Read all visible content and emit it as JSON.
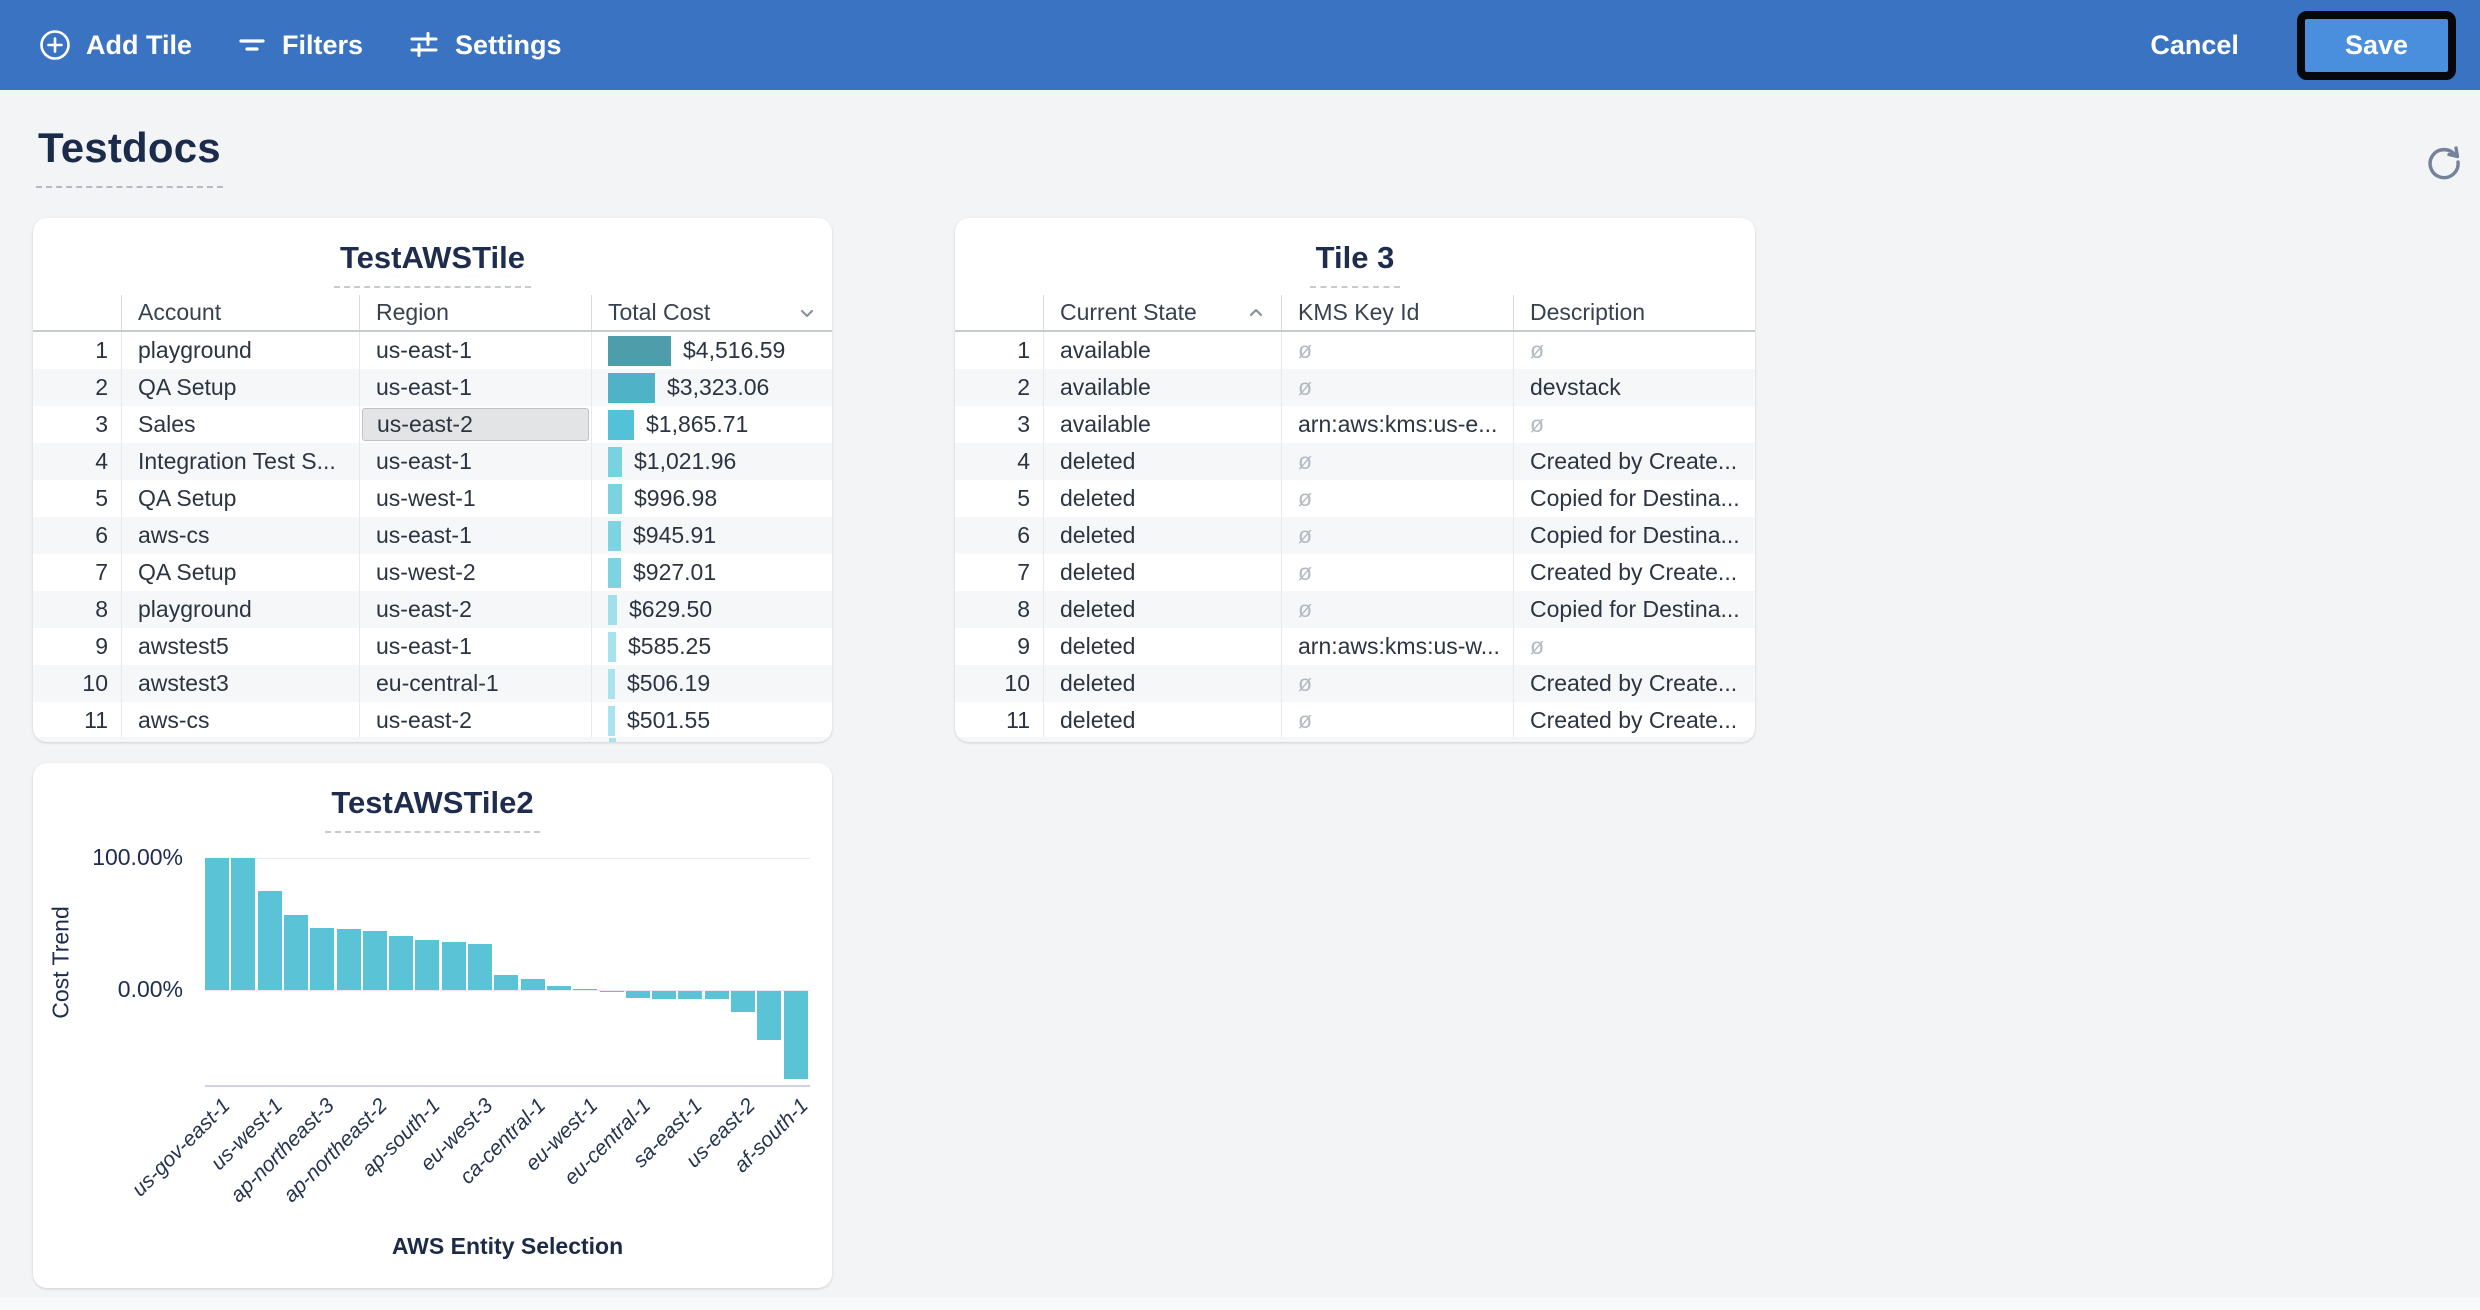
{
  "toolbar": {
    "add_tile_label": "Add Tile",
    "filters_label": "Filters",
    "settings_label": "Settings",
    "cancel_label": "Cancel",
    "save_label": "Save",
    "bar_color": "#3a73c2",
    "save_bg": "#4a8ede"
  },
  "page": {
    "title": "Testdocs"
  },
  "aws_tile": {
    "title": "TestAWSTile",
    "columns": [
      "Account",
      "Region",
      "Total Cost"
    ],
    "sort": {
      "column": "Total Cost",
      "direction": "desc"
    },
    "rows": [
      {
        "n": "1",
        "account": "playground",
        "region": "us-east-1",
        "total_cost": "$4,516.59",
        "value": 4516.59,
        "bar_color": "#4d9dab",
        "region_selected": false
      },
      {
        "n": "2",
        "account": "QA Setup",
        "region": "us-east-1",
        "total_cost": "$3,323.06",
        "value": 3323.06,
        "bar_color": "#4fb2c6",
        "region_selected": false
      },
      {
        "n": "3",
        "account": "Sales",
        "region": "us-east-2",
        "total_cost": "$1,865.71",
        "value": 1865.71,
        "bar_color": "#53c2d8",
        "region_selected": true
      },
      {
        "n": "4",
        "account": "Integration Test S...",
        "region": "us-east-1",
        "total_cost": "$1,021.96",
        "value": 1021.96,
        "bar_color": "#79d2e2",
        "region_selected": false
      },
      {
        "n": "5",
        "account": "QA Setup",
        "region": "us-west-1",
        "total_cost": "$996.98",
        "value": 996.98,
        "bar_color": "#7bd3e2",
        "region_selected": false
      },
      {
        "n": "6",
        "account": "aws-cs",
        "region": "us-east-1",
        "total_cost": "$945.91",
        "value": 945.91,
        "bar_color": "#7cd3e2",
        "region_selected": false
      },
      {
        "n": "7",
        "account": "QA Setup",
        "region": "us-west-2",
        "total_cost": "$927.01",
        "value": 927.01,
        "bar_color": "#7dd3e2",
        "region_selected": false
      },
      {
        "n": "8",
        "account": "playground",
        "region": "us-east-2",
        "total_cost": "$629.50",
        "value": 629.5,
        "bar_color": "#9fe0eb",
        "region_selected": false
      },
      {
        "n": "9",
        "account": "awstest5",
        "region": "us-east-1",
        "total_cost": "$585.25",
        "value": 585.25,
        "bar_color": "#a5e3ed",
        "region_selected": false
      },
      {
        "n": "10",
        "account": "awstest3",
        "region": "eu-central-1",
        "total_cost": "$506.19",
        "value": 506.19,
        "bar_color": "#a9e4ee",
        "region_selected": false
      },
      {
        "n": "11",
        "account": "aws-cs",
        "region": "us-east-2",
        "total_cost": "$501.55",
        "value": 501.55,
        "bar_color": "#a9e4ee",
        "region_selected": false
      }
    ]
  },
  "tile3": {
    "title": "Tile 3",
    "columns": [
      "Current State",
      "KMS Key Id",
      "Description"
    ],
    "sort": {
      "column": "Current State",
      "direction": "asc"
    },
    "empty_symbol": "ø",
    "rows": [
      {
        "n": "1",
        "state": "available",
        "kms": "ø",
        "desc": "ø"
      },
      {
        "n": "2",
        "state": "available",
        "kms": "ø",
        "desc": "devstack"
      },
      {
        "n": "3",
        "state": "available",
        "kms": "arn:aws:kms:us-e...",
        "desc": "ø"
      },
      {
        "n": "4",
        "state": "deleted",
        "kms": "ø",
        "desc": "Created by Create..."
      },
      {
        "n": "5",
        "state": "deleted",
        "kms": "ø",
        "desc": "Copied for Destina..."
      },
      {
        "n": "6",
        "state": "deleted",
        "kms": "ø",
        "desc": "Copied for Destina..."
      },
      {
        "n": "7",
        "state": "deleted",
        "kms": "ø",
        "desc": "Created by Create..."
      },
      {
        "n": "8",
        "state": "deleted",
        "kms": "ø",
        "desc": "Copied for Destina..."
      },
      {
        "n": "9",
        "state": "deleted",
        "kms": "arn:aws:kms:us-w...",
        "desc": "ø"
      },
      {
        "n": "10",
        "state": "deleted",
        "kms": "ø",
        "desc": "Created by Create..."
      },
      {
        "n": "11",
        "state": "deleted",
        "kms": "ø",
        "desc": "Created by Create..."
      }
    ]
  },
  "chart_data": {
    "type": "bar",
    "title": "TestAWSTile2",
    "xlabel": "AWS Entity Selection",
    "ylabel": "Cost Trend",
    "yticks": [
      "100.00%",
      "0.00%"
    ],
    "ylim": [
      -73,
      100
    ],
    "grid": "horizontal",
    "bar_color": "#5ac3d6",
    "values": [
      100,
      100,
      75,
      57,
      47,
      46,
      45,
      41,
      38,
      36,
      35,
      11,
      8,
      3,
      1,
      -1,
      -5,
      -6,
      -6,
      -6,
      -16,
      -37,
      -67
    ],
    "x_tick_labels": [
      "us-gov-east-1",
      "us-west-1",
      "ap-northeast-3",
      "ap-northeast-2",
      "ap-south-1",
      "eu-west-3",
      "ca-central-1",
      "eu-west-1",
      "eu-central-1",
      "sa-east-1",
      "us-east-2",
      "af-south-1"
    ],
    "x_tick_every_other_bar": true
  }
}
